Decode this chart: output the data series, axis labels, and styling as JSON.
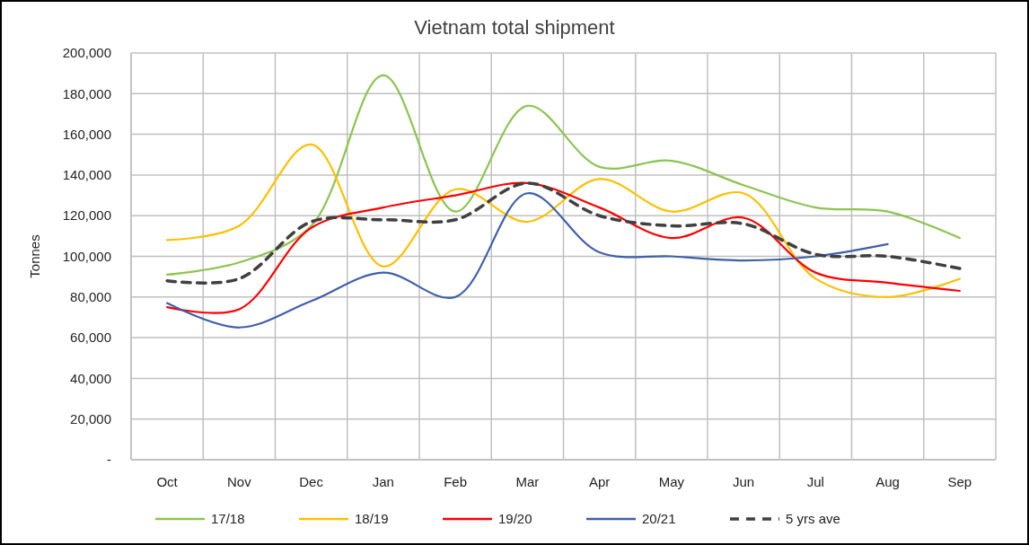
{
  "chart_data": {
    "type": "line",
    "title": "Vietnam total shipment",
    "ylabel": "Tonnes",
    "categories": [
      "Oct",
      "Nov",
      "Dec",
      "Jan",
      "Feb",
      "Mar",
      "Apr",
      "May",
      "Jun",
      "Jul",
      "Aug",
      "Sep"
    ],
    "series": [
      {
        "name": "17/18",
        "color": "#8cc44f",
        "values": [
          91000,
          97000,
          115000,
          189000,
          122000,
          174000,
          144000,
          147000,
          135000,
          124000,
          122000,
          109000
        ]
      },
      {
        "name": "18/19",
        "color": "#ffc000",
        "values": [
          108000,
          115000,
          155000,
          95000,
          133000,
          117000,
          138000,
          122000,
          131000,
          89000,
          80000,
          89000
        ]
      },
      {
        "name": "19/20",
        "color": "#ff0000",
        "values": [
          75000,
          74000,
          114000,
          124000,
          130000,
          136000,
          124000,
          109000,
          119000,
          92000,
          87000,
          83000
        ]
      },
      {
        "name": "20/21",
        "color": "#3f5fa8",
        "values": [
          77000,
          65000,
          78000,
          92000,
          80000,
          131000,
          102000,
          100000,
          98000,
          100000,
          106000,
          null
        ]
      },
      {
        "name": "5 yrs ave",
        "color": "#404040",
        "line_style": "dashed",
        "values": [
          88000,
          89000,
          117000,
          118000,
          118000,
          136000,
          120000,
          115000,
          116000,
          101000,
          100000,
          94000
        ]
      }
    ],
    "ylim": [
      0,
      200000
    ],
    "yticks": [
      {
        "value": 0,
        "label": "-"
      },
      {
        "value": 20000,
        "label": "20,000"
      },
      {
        "value": 40000,
        "label": "40,000"
      },
      {
        "value": 60000,
        "label": "60,000"
      },
      {
        "value": 80000,
        "label": "80,000"
      },
      {
        "value": 100000,
        "label": "100,000"
      },
      {
        "value": 120000,
        "label": "120,000"
      },
      {
        "value": 140000,
        "label": "140,000"
      },
      {
        "value": 160000,
        "label": "160,000"
      },
      {
        "value": 180000,
        "label": "180,000"
      },
      {
        "value": 200000,
        "label": "200,000"
      }
    ],
    "grid": true,
    "legend": "bottom",
    "line_style": "solid"
  }
}
